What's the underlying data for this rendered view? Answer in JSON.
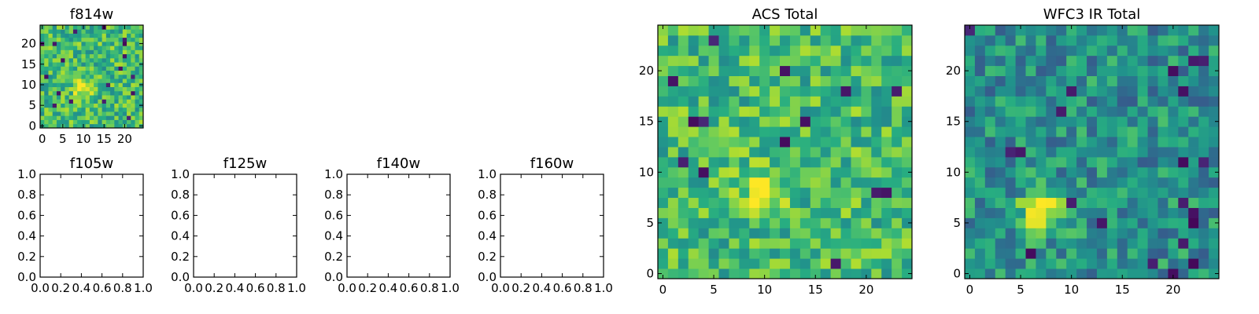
{
  "chart_data": [
    {
      "id": "f814w",
      "type": "heatmap",
      "title": "f814w",
      "colormap": "viridis",
      "grid_size": [
        25,
        25
      ],
      "xlim": [
        -0.5,
        24.5
      ],
      "ylim": [
        -0.5,
        24.5
      ],
      "xticks": [
        0,
        5,
        10,
        15,
        20
      ],
      "yticks": [
        0,
        5,
        10,
        15,
        20
      ],
      "source_center": [
        10,
        9
      ],
      "background_level": 0.68,
      "peak_level": 0.95
    },
    {
      "id": "f105w",
      "type": "empty",
      "title": "f105w",
      "xlim": [
        0,
        1
      ],
      "ylim": [
        0,
        1
      ],
      "xticks": [
        "0.0",
        "0.2",
        "0.4",
        "0.6",
        "0.8",
        "1.0"
      ],
      "yticks": [
        "0.0",
        "0.2",
        "0.4",
        "0.6",
        "0.8",
        "1.0"
      ]
    },
    {
      "id": "f125w",
      "type": "empty",
      "title": "f125w",
      "xlim": [
        0,
        1
      ],
      "ylim": [
        0,
        1
      ],
      "xticks": [
        "0.0",
        "0.2",
        "0.4",
        "0.6",
        "0.8",
        "1.0"
      ],
      "yticks": [
        "0.0",
        "0.2",
        "0.4",
        "0.6",
        "0.8",
        "1.0"
      ]
    },
    {
      "id": "f140w",
      "type": "empty",
      "title": "f140w",
      "xlim": [
        0,
        1
      ],
      "ylim": [
        0,
        1
      ],
      "xticks": [
        "0.0",
        "0.2",
        "0.4",
        "0.6",
        "0.8",
        "1.0"
      ],
      "yticks": [
        "0.0",
        "0.2",
        "0.4",
        "0.6",
        "0.8",
        "1.0"
      ]
    },
    {
      "id": "f160w",
      "type": "empty",
      "title": "f160w",
      "xlim": [
        0,
        1
      ],
      "ylim": [
        0,
        1
      ],
      "xticks": [
        "0.0",
        "0.2",
        "0.4",
        "0.6",
        "0.8",
        "1.0"
      ],
      "yticks": [
        "0.0",
        "0.2",
        "0.4",
        "0.6",
        "0.8",
        "1.0"
      ]
    },
    {
      "id": "acs-total",
      "type": "heatmap",
      "title": "ACS Total",
      "colormap": "viridis",
      "grid_size": [
        25,
        25
      ],
      "xlim": [
        -0.5,
        24.5
      ],
      "ylim": [
        -0.5,
        24.5
      ],
      "xticks": [
        0,
        5,
        10,
        15,
        20
      ],
      "yticks": [
        0,
        5,
        10,
        15,
        20
      ],
      "source_center": [
        10,
        8
      ],
      "background_level": 0.68,
      "peak_level": 0.97
    },
    {
      "id": "wfc3-ir-total",
      "type": "heatmap",
      "title": "WFC3 IR Total",
      "colormap": "viridis",
      "grid_size": [
        25,
        25
      ],
      "xlim": [
        -0.5,
        24.5
      ],
      "ylim": [
        -0.5,
        24.5
      ],
      "xticks": [
        0,
        5,
        10,
        15,
        20
      ],
      "yticks": [
        0,
        5,
        10,
        15,
        20
      ],
      "source_center": [
        7,
        6
      ],
      "background_level": 0.5,
      "peak_level": 0.95
    }
  ]
}
